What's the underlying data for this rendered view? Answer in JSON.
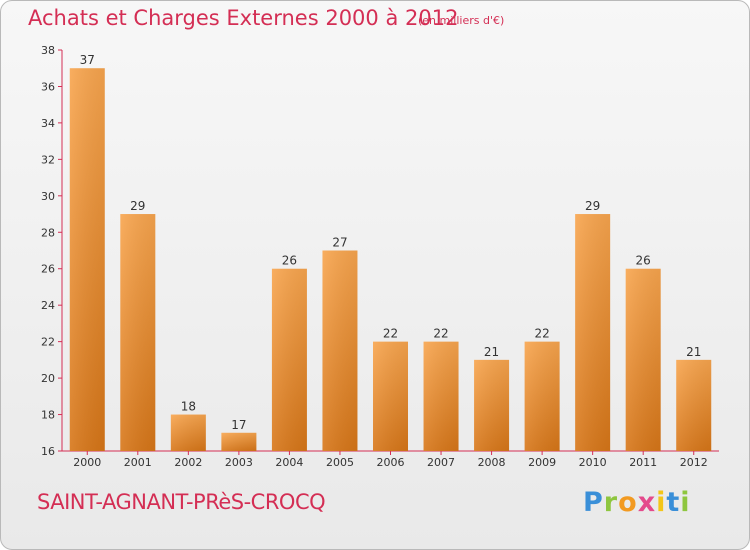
{
  "header": {
    "title": "Achats et Charges Externes 2000 à 2012",
    "subtitle": "(en milliers d'€)"
  },
  "footer": {
    "place_name": "SAINT-AGNANT-PRèS-CROCQ",
    "logo": [
      "P",
      "r",
      "o",
      "x",
      "i",
      "t",
      "i"
    ]
  },
  "colors": {
    "accent": "#d42e54",
    "bar_light": "#f8a54e",
    "bar_dark": "#d77618",
    "axis": "#d42e54",
    "text": "#333333"
  },
  "chart_data": {
    "type": "bar",
    "title": "Achats et Charges Externes 2000 à 2012",
    "subtitle": "(en milliers d'€)",
    "xlabel": "",
    "ylabel": "",
    "categories": [
      "2000",
      "2001",
      "2002",
      "2003",
      "2004",
      "2005",
      "2006",
      "2007",
      "2008",
      "2009",
      "2010",
      "2011",
      "2012"
    ],
    "values": [
      37,
      29,
      18,
      17,
      26,
      27,
      22,
      22,
      21,
      22,
      29,
      26,
      21
    ],
    "ylim": [
      16,
      38
    ],
    "yticks": [
      16,
      18,
      20,
      22,
      24,
      26,
      28,
      30,
      32,
      34,
      36,
      38
    ],
    "grid": false,
    "legend": "none"
  }
}
